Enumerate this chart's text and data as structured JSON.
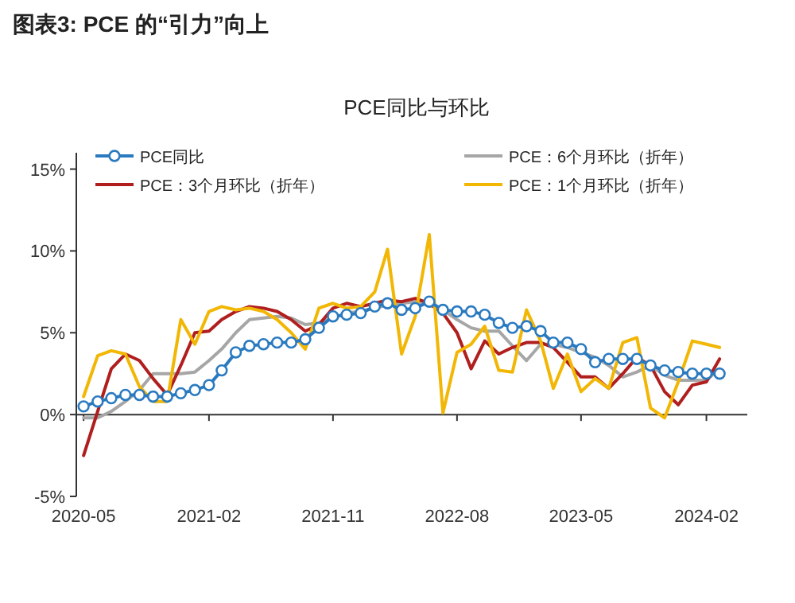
{
  "chart_data": {
    "type": "line",
    "title": "图表3: PCE 的“引力”向上",
    "subtitle": "PCE同比与环比",
    "x": [
      "2020-05",
      "2020-06",
      "2020-07",
      "2020-08",
      "2020-09",
      "2020-10",
      "2020-11",
      "2020-12",
      "2021-01",
      "2021-02",
      "2021-03",
      "2021-04",
      "2021-05",
      "2021-06",
      "2021-07",
      "2021-08",
      "2021-09",
      "2021-10",
      "2021-11",
      "2021-12",
      "2022-01",
      "2022-02",
      "2022-03",
      "2022-04",
      "2022-05",
      "2022-06",
      "2022-07",
      "2022-08",
      "2022-09",
      "2022-10",
      "2022-11",
      "2022-12",
      "2023-01",
      "2023-02",
      "2023-03",
      "2023-04",
      "2023-05",
      "2023-06",
      "2023-07",
      "2023-08",
      "2023-09",
      "2023-10",
      "2023-11",
      "2023-12",
      "2024-01",
      "2024-02",
      "2024-03"
    ],
    "series": [
      {
        "name": "PCE同比",
        "color": "#2a7ac0",
        "marker": "circle",
        "values": [
          0.5,
          0.8,
          1.0,
          1.2,
          1.2,
          1.1,
          1.1,
          1.3,
          1.5,
          1.8,
          2.7,
          3.8,
          4.2,
          4.3,
          4.4,
          4.4,
          4.6,
          5.3,
          6.0,
          6.1,
          6.2,
          6.6,
          6.8,
          6.4,
          6.5,
          6.9,
          6.4,
          6.3,
          6.3,
          6.1,
          5.6,
          5.3,
          5.4,
          5.1,
          4.4,
          4.4,
          4.0,
          3.2,
          3.4,
          3.4,
          3.4,
          3.0,
          2.7,
          2.6,
          2.5,
          2.5,
          2.5
        ]
      },
      {
        "name": "PCE：6个月环比（折年）",
        "color": "#a6a6a6",
        "marker": "none",
        "values": [
          -0.2,
          -0.2,
          0.2,
          0.8,
          1.5,
          2.5,
          2.5,
          2.5,
          2.6,
          3.3,
          4.0,
          5.0,
          5.8,
          5.9,
          6.0,
          5.9,
          5.5,
          5.6,
          5.9,
          6.2,
          6.3,
          6.5,
          6.7,
          6.8,
          6.9,
          6.7,
          6.4,
          5.8,
          5.3,
          5.1,
          5.1,
          4.2,
          3.3,
          4.3,
          4.3,
          4.1,
          3.8,
          3.5,
          3.0,
          2.3,
          2.6,
          3.0,
          2.4,
          2.1,
          2.1,
          2.1,
          2.8
        ]
      },
      {
        "name": "PCE：3个月环比（折年）",
        "color": "#b01e1e",
        "marker": "none",
        "values": [
          -2.5,
          0.2,
          2.8,
          3.7,
          3.3,
          2.2,
          1.2,
          3.0,
          5.0,
          5.1,
          5.8,
          6.3,
          6.6,
          6.5,
          6.3,
          5.8,
          5.1,
          5.5,
          6.5,
          6.8,
          6.6,
          6.8,
          7.0,
          6.9,
          7.1,
          6.8,
          6.2,
          5.0,
          2.8,
          4.5,
          3.7,
          4.1,
          4.4,
          4.4,
          4.1,
          3.2,
          2.3,
          2.3,
          1.6,
          2.5,
          3.5,
          3.0,
          1.4,
          0.6,
          1.8,
          2.0,
          3.4
        ]
      },
      {
        "name": "PCE：1个月环比（折年）",
        "color": "#f2b705",
        "marker": "none",
        "values": [
          1.1,
          3.6,
          3.9,
          3.7,
          1.7,
          0.8,
          0.8,
          5.8,
          4.3,
          6.3,
          6.6,
          6.4,
          6.5,
          6.3,
          5.8,
          5.0,
          4.0,
          6.5,
          6.8,
          6.5,
          6.6,
          7.5,
          10.1,
          3.7,
          6.0,
          11.0,
          0.1,
          3.8,
          4.3,
          5.4,
          2.7,
          2.6,
          6.4,
          4.5,
          1.6,
          3.7,
          1.4,
          2.2,
          1.6,
          4.4,
          4.7,
          0.4,
          -0.2,
          2.0,
          4.5,
          4.3,
          4.1
        ]
      }
    ],
    "xlim": [
      "2020-04-15",
      "2024-05-01"
    ],
    "xticks": [
      {
        "value": "2020-05",
        "label": "2020-05"
      },
      {
        "value": "2021-02",
        "label": "2021-02"
      },
      {
        "value": "2021-11",
        "label": "2021-11"
      },
      {
        "value": "2022-08",
        "label": "2022-08"
      },
      {
        "value": "2023-05",
        "label": "2023-05"
      },
      {
        "value": "2024-02",
        "label": "2024-02"
      }
    ],
    "ylim": [
      -5,
      16
    ],
    "yticks": [
      {
        "value": -5,
        "label": "-5%"
      },
      {
        "value": 0,
        "label": "0%"
      },
      {
        "value": 5,
        "label": "5%"
      },
      {
        "value": 10,
        "label": "10%"
      },
      {
        "value": 15,
        "label": "15%"
      }
    ],
    "legend": "top"
  }
}
